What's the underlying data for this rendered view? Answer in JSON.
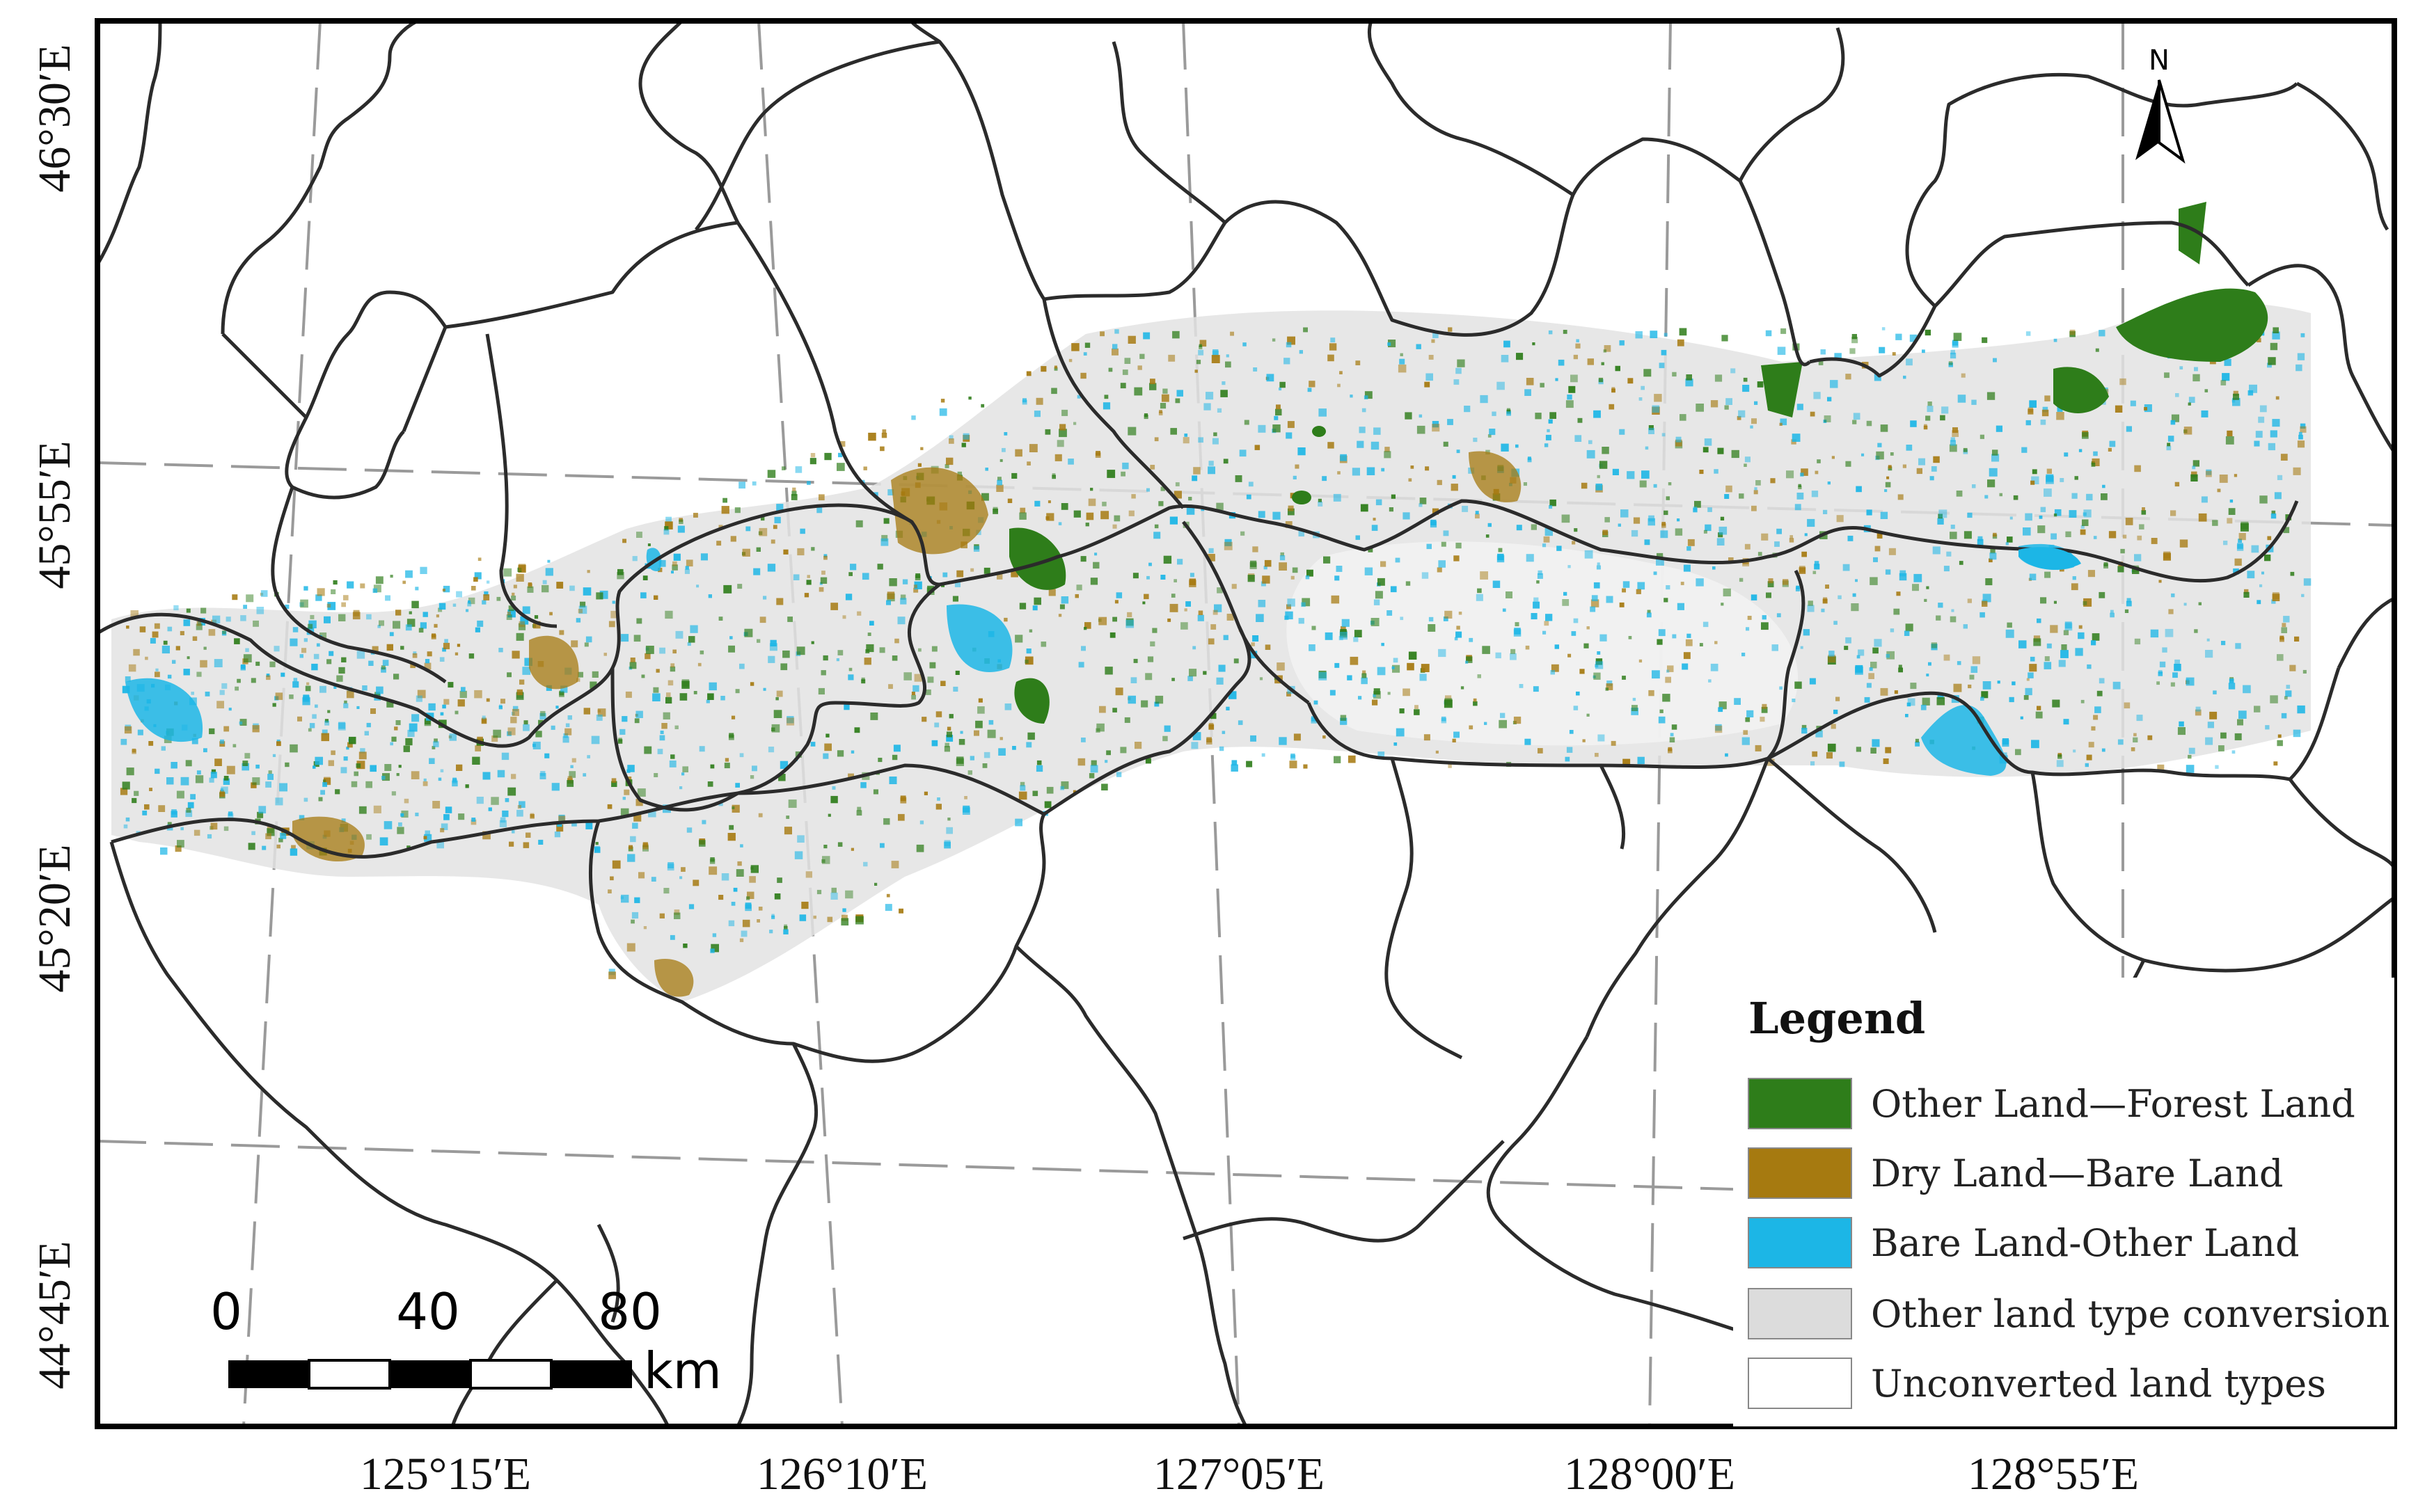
{
  "map": {
    "lon_labels": [
      "125°15′E",
      "126°10′E",
      "127°05′E",
      "128°00′E",
      "128°55′E"
    ],
    "lat_labels": [
      "46°30′E",
      "45°55′E",
      "45°20′E",
      "44°45′E"
    ]
  },
  "north_arrow": {
    "label": "N"
  },
  "scale_bar": {
    "ticks": [
      "0",
      "40",
      "80"
    ],
    "unit": "km"
  },
  "legend": {
    "title": "Legend",
    "items": [
      {
        "label": "Other Land—Forest Land",
        "color": "#2e7d1a"
      },
      {
        "label": "Dry Land—Bare Land",
        "color": "#a67a10"
      },
      {
        "label": "Bare Land-Other Land",
        "color": "#1cb6e6"
      },
      {
        "label": "Other land type conversion",
        "color": "#dcdcdc"
      },
      {
        "label": "Unconverted land types",
        "color": "#ffffff"
      }
    ]
  }
}
